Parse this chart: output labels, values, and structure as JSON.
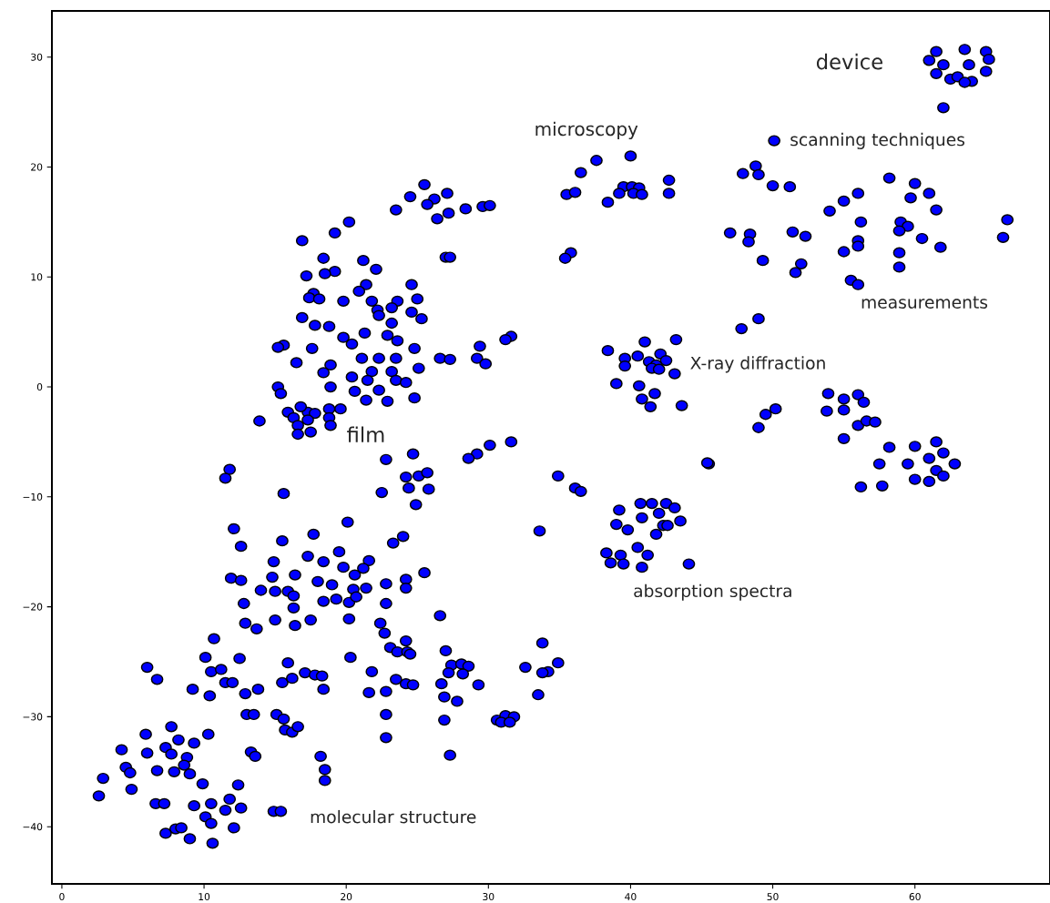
{
  "chart_data": {
    "type": "scatter",
    "color": "#0000ff",
    "marker": "circle",
    "xlim": [
      -0.7,
      69.5
    ],
    "ylim": [
      -45.2,
      34.2
    ],
    "xticks": [
      0,
      10,
      20,
      30,
      40,
      50,
      60
    ],
    "yticks": [
      {
        "value": -40,
        "label": "−40"
      },
      {
        "value": -30,
        "label": "−30"
      },
      {
        "value": -20,
        "label": "−20"
      },
      {
        "value": -10,
        "label": "−10"
      },
      0,
      10,
      20,
      30
    ],
    "annotations": [
      "device",
      "microscopy",
      "scanning techniques",
      "measurements",
      "X-ray diffraction",
      "film",
      "absorption spectra",
      "molecular structure"
    ],
    "x": [
      61.5,
      63.5,
      65,
      61,
      62,
      63.8,
      65.2,
      61.5,
      62.5,
      63,
      64,
      65,
      62,
      63.5,
      50.1,
      48.8,
      47.9,
      49.0,
      50,
      51.2,
      58.2,
      60,
      61,
      56,
      55,
      54,
      59.7,
      61.5,
      56.2,
      59,
      59.5,
      51.4,
      52.3,
      47,
      48.4,
      48.3,
      56,
      58.9,
      60.5,
      55,
      56,
      58.9,
      61.8,
      66.5,
      66.2,
      58.9,
      49.3,
      52,
      51.6,
      55.5,
      56,
      47.8,
      49,
      53.9,
      55,
      56,
      56.4,
      53.8,
      55,
      56,
      56.6,
      57.2,
      50.2,
      49.5,
      49,
      55,
      58.2,
      60,
      61.5,
      62,
      61,
      62.8,
      59.5,
      57.5,
      60,
      61,
      61.5,
      62,
      57.7,
      56.2,
      45.5,
      45.4,
      43.2,
      41,
      38.4,
      39.6,
      41.3,
      42.1,
      42.5,
      41.8,
      39.6,
      41.5,
      43.1,
      40.6,
      39,
      41.7,
      40.8,
      41.4,
      43.6,
      42,
      40.5,
      42.5,
      41.5,
      40.7,
      43.1,
      39.2,
      42,
      40.8,
      39,
      42.3,
      43.5,
      41.8,
      39.8,
      40.5,
      38.3,
      39.3,
      38.6,
      39.5,
      41.2,
      40.8,
      44.1,
      42.6,
      40,
      37.6,
      36.5,
      35.5,
      36.1,
      39.5,
      40.1,
      40.6,
      40.2,
      39.2,
      38.4,
      42.7,
      42.7,
      35.8,
      35.4,
      40.8,
      24.5,
      25.5,
      26.2,
      27.1,
      23.5,
      25.7,
      26.4,
      27.2,
      28.4,
      29.6,
      30.1,
      27,
      27.3,
      20.2,
      19.2,
      16.9,
      18.4,
      21.2,
      22.1,
      19.2,
      17.2,
      18.5,
      24.6,
      21.4,
      17.7,
      17.4,
      18.1,
      25,
      20.9,
      19.8,
      21.8,
      23.6,
      23.2,
      22.2,
      24.6,
      25.3,
      22.3,
      16.9,
      17.8,
      18.8,
      21.3,
      23.2,
      19.8,
      22.9,
      31.6,
      31.2,
      23.6,
      15.6,
      15.2,
      17.6,
      20.4,
      24.8,
      26.6,
      27.3,
      29.4,
      29.2,
      29.8,
      16.5,
      21.1,
      22.3,
      23.5,
      18.9,
      18.4,
      21.8,
      23.2,
      25.1,
      20.4,
      21.5,
      23.5,
      24.2,
      15.2,
      15.4,
      18.9,
      20.6,
      22.3,
      21.4,
      22.9,
      24.8,
      13.9,
      15.9,
      16.3,
      17.3,
      17.8,
      18.8,
      19.6,
      17.3,
      18.8,
      16.6,
      18.9,
      16.6,
      17.5,
      16.8,
      11.8,
      11.5,
      15.6,
      24.7,
      22.8,
      30.1,
      31.6,
      29.2,
      28.6,
      24.2,
      25.1,
      25.7,
      24.4,
      25.8,
      22.5,
      24.9,
      34.9,
      36.1,
      36.5,
      33.6,
      12.1,
      12.6,
      15.5,
      20.1,
      17.7,
      24,
      23.3,
      17.3,
      14.9,
      18.4,
      19.5,
      21.6,
      16.4,
      11.9,
      12.6,
      14.8,
      18,
      19.8,
      20.6,
      21.2,
      24.2,
      25.5,
      14,
      15,
      15.9,
      19,
      20.5,
      22.8,
      21.4,
      24.2,
      12.8,
      16.3,
      18.4,
      19.3,
      20.2,
      20.7,
      22.8,
      16.3,
      15,
      16.4,
      17.5,
      20.2,
      12.9,
      13.7,
      22.4,
      22.7,
      24.2,
      26.6,
      10.7,
      10.1,
      12.5,
      15.9,
      20.3,
      23.1,
      23.6,
      24.3,
      24.5,
      27,
      6,
      10.5,
      11.2,
      15.5,
      16.2,
      17.1,
      17.8,
      18.3,
      21.8,
      23.5,
      24.2,
      24.7,
      27.4,
      28.1,
      28.6,
      28.2,
      27.2,
      29.3,
      26.7,
      6.7,
      9.2,
      11.5,
      12,
      12.9,
      13.8,
      10.4,
      18.4,
      21.6,
      22.8,
      26.9,
      27.8,
      22.8,
      13,
      13.5,
      15.1,
      15.6,
      26.9,
      22.8,
      15.7,
      16.2,
      16.6,
      27.3,
      13.3,
      13.6,
      18.2,
      18.5,
      18.5,
      32.6,
      33.8,
      34.2,
      33.8,
      34.9,
      30.6,
      31.2,
      30.9,
      31.8,
      33.5,
      31.5,
      5.9,
      7.7,
      10.3,
      4.2,
      6,
      7.3,
      8.2,
      9.3,
      7.7,
      8.8,
      8.6,
      4.5,
      4.8,
      6.7,
      7.9,
      9,
      2.9,
      4.9,
      9.9,
      12.4,
      2.6,
      6.6,
      7.2,
      9.3,
      10.5,
      11.8,
      12.6,
      11.5,
      14.9,
      15.4,
      7.3,
      8,
      8.4,
      10.1,
      10.5,
      12.1,
      9,
      10.6
    ],
    "values": [
      30.5,
      30.7,
      30.5,
      29.7,
      29.3,
      29.3,
      29.8,
      28.5,
      28,
      28.2,
      27.8,
      28.7,
      25.4,
      27.7,
      22.4,
      20.1,
      19.4,
      19.3,
      18.3,
      18.2,
      19,
      18.5,
      17.6,
      17.6,
      16.9,
      16,
      17.2,
      16.1,
      15,
      15,
      14.6,
      14.1,
      13.7,
      14,
      13.9,
      13.2,
      13.3,
      14.2,
      13.5,
      12.3,
      12.8,
      12.2,
      12.7,
      15.2,
      13.6,
      10.9,
      11.5,
      11.2,
      10.4,
      9.7,
      9.3,
      5.3,
      6.2,
      -0.6,
      -1.1,
      -0.7,
      -1.4,
      -2.2,
      -2.1,
      -3.5,
      -3.1,
      -3.2,
      -2,
      -2.5,
      -3.7,
      -4.7,
      -5.5,
      -5.4,
      -5,
      -6,
      -6.5,
      -7,
      -7,
      -7,
      -8.4,
      -8.6,
      -7.6,
      -8.1,
      -9,
      -9.1,
      -7,
      -6.9,
      4.3,
      4.1,
      3.3,
      2.6,
      2.3,
      3.0,
      2.4,
      2.0,
      1.9,
      1.7,
      1.2,
      0.1,
      0.3,
      -0.6,
      -1.1,
      -1.8,
      -1.7,
      1.6,
      2.8,
      -10.6,
      -10.6,
      -10.6,
      -11,
      -11.2,
      -11.5,
      -11.9,
      -12.5,
      -12.6,
      -12.2,
      -13.4,
      -13,
      -14.6,
      -15.1,
      -15.3,
      -16,
      -16.1,
      -15.3,
      -16.4,
      -16.1,
      -12.6,
      21,
      20.6,
      19.5,
      17.5,
      17.7,
      18.2,
      18.2,
      18.1,
      17.6,
      17.6,
      16.8,
      18.8,
      17.6,
      12.2,
      11.7,
      17.5,
      17.3,
      18.4,
      17.1,
      17.6,
      16.1,
      16.6,
      15.3,
      15.8,
      16.2,
      16.4,
      16.5,
      11.8,
      11.8,
      15.0,
      14,
      13.3,
      11.7,
      11.5,
      10.7,
      10.5,
      10.1,
      10.3,
      9.3,
      9.3,
      8.5,
      8.1,
      8,
      8,
      8.7,
      7.8,
      7.8,
      7.8,
      7.2,
      7.0,
      6.8,
      6.2,
      6.5,
      6.3,
      5.6,
      5.5,
      4.9,
      5.8,
      4.5,
      4.7,
      4.6,
      4.3,
      4.2,
      3.8,
      3.6,
      3.5,
      3.9,
      3.5,
      2.6,
      2.5,
      3.7,
      2.6,
      2.1,
      2.2,
      2.6,
      2.6,
      2.6,
      2,
      1.3,
      1.4,
      1.4,
      1.7,
      0.9,
      0.6,
      0.6,
      0.4,
      0,
      -0.6,
      0,
      -0.4,
      -0.3,
      -1.2,
      -1.3,
      -1.0,
      -3.1,
      -2.3,
      -2.8,
      -2.3,
      -2.4,
      -2.0,
      -2.0,
      -3.0,
      -2.8,
      -3.5,
      -3.5,
      -4.3,
      -4.1,
      -1.8,
      -7.5,
      -8.3,
      -9.7,
      -6.1,
      -6.6,
      -5.3,
      -5,
      -6.1,
      -6.5,
      -8.2,
      -8.1,
      -7.8,
      -9.2,
      -9.3,
      -9.6,
      -10.7,
      -8.1,
      -9.2,
      -9.5,
      -13.1,
      -12.9,
      -14.5,
      -14,
      -12.3,
      -13.4,
      -13.6,
      -14.2,
      -15.4,
      -15.9,
      -15.9,
      -15,
      -15.8,
      -17.1,
      -17.4,
      -17.6,
      -17.3,
      -17.7,
      -16.4,
      -17.1,
      -16.5,
      -17.5,
      -16.9,
      -18.5,
      -18.6,
      -18.6,
      -18,
      -18.4,
      -17.9,
      -18.3,
      -18.3,
      -19.7,
      -19,
      -19.5,
      -19.3,
      -19.6,
      -19.1,
      -19.7,
      -20.1,
      -21.2,
      -21.7,
      -21.2,
      -21.1,
      -21.5,
      -22,
      -21.5,
      -22.4,
      -23.1,
      -20.8,
      -22.9,
      -24.6,
      -24.7,
      -25.1,
      -24.6,
      -23.7,
      -24.1,
      -24.1,
      -24.3,
      -24,
      -25.5,
      -25.9,
      -25.7,
      -26.9,
      -26.5,
      -26,
      -26.2,
      -26.3,
      -25.9,
      -26.6,
      -27,
      -27.1,
      -25.3,
      -25.2,
      -25.4,
      -26.1,
      -26,
      -27.1,
      -27,
      -26.6,
      -27.5,
      -26.9,
      -26.9,
      -27.9,
      -27.5,
      -28.1,
      -27.5,
      -27.8,
      -27.7,
      -28.2,
      -28.6,
      -29.8,
      -29.8,
      -29.8,
      -29.8,
      -30.2,
      -30.3,
      -31.9,
      -31.2,
      -31.4,
      -30.9,
      -33.5,
      -33.2,
      -33.6,
      -33.6,
      -34.8,
      -35.8,
      -25.5,
      -23.3,
      -25.9,
      -26,
      -25.1,
      -30.3,
      -29.9,
      -30.5,
      -30,
      -28,
      -30.5,
      -31.6,
      -30.9,
      -31.6,
      -33,
      -33.3,
      -32.8,
      -32.1,
      -32.4,
      -33.4,
      -33.7,
      -34.4,
      -34.6,
      -35.1,
      -34.9,
      -35,
      -35.2,
      -35.6,
      -36.6,
      -36.1,
      -36.2,
      -37.2,
      -37.9,
      -37.9,
      -38.1,
      -37.9,
      -37.5,
      -38.3,
      -38.5,
      -38.6,
      -38.6,
      -40.6,
      -40.2,
      -40.1,
      -39.1,
      -39.7,
      -40.1,
      -41.1,
      -41.5
    ]
  }
}
